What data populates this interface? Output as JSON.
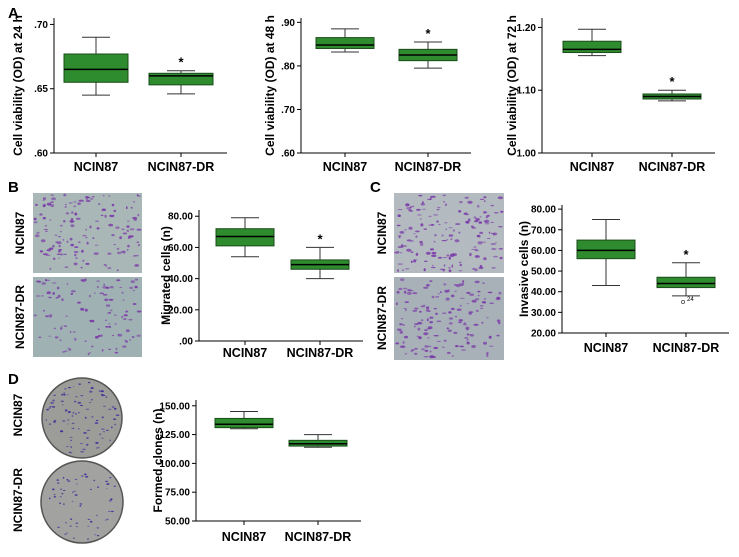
{
  "figure": {
    "panel_labels": [
      "A",
      "B",
      "C",
      "D"
    ],
    "photo_labels": {
      "B": [
        "NCIN87",
        "NCIN87-DR"
      ],
      "C": [
        "NCIN87",
        "NCIN87-DR"
      ],
      "D": [
        "NCIN87",
        "NCIN87-DR"
      ]
    },
    "colors": {
      "box_fill": "#2e8b2e",
      "box_stroke": "#1a4d1a",
      "axis": "#000000",
      "well_bg": "#a8b0b0",
      "cell_stain": "#7a3aa8",
      "dish_bg": "#9a9a98",
      "colony": "#3a2a9a"
    }
  },
  "chart_data": [
    {
      "id": "A1",
      "type": "box",
      "ylabel": "Cell viability (OD) at 24 h",
      "categories": [
        "NCIN87",
        "NCIN87-DR"
      ],
      "ticks": [
        0.6,
        0.65,
        0.7
      ],
      "tick_labels": [
        ".60",
        ".65",
        ".70"
      ],
      "ylim": [
        0.6,
        0.705
      ],
      "boxes": [
        {
          "min": 0.645,
          "q1": 0.655,
          "median": 0.665,
          "q3": 0.677,
          "max": 0.69,
          "star": false
        },
        {
          "min": 0.646,
          "q1": 0.653,
          "median": 0.66,
          "q3": 0.662,
          "max": 0.664,
          "star": true
        }
      ],
      "outliers": []
    },
    {
      "id": "A2",
      "type": "box",
      "ylabel": "Cell viability (OD) at 48 h",
      "categories": [
        "NCIN87",
        "NCIN87-DR"
      ],
      "ticks": [
        0.6,
        0.7,
        0.8,
        0.9
      ],
      "tick_labels": [
        ".60",
        ".70",
        ".80",
        ".90"
      ],
      "ylim": [
        0.6,
        0.91
      ],
      "boxes": [
        {
          "min": 0.832,
          "q1": 0.84,
          "median": 0.848,
          "q3": 0.865,
          "max": 0.885,
          "star": false
        },
        {
          "min": 0.795,
          "q1": 0.812,
          "median": 0.825,
          "q3": 0.838,
          "max": 0.855,
          "star": true
        }
      ],
      "outliers": []
    },
    {
      "id": "A3",
      "type": "box",
      "ylabel": "Cell viability (OD) at 72 h",
      "categories": [
        "NCIN87",
        "NCIN87-DR"
      ],
      "ticks": [
        1.0,
        1.1,
        1.2
      ],
      "tick_labels": [
        "1.00",
        "1.10",
        "1.20"
      ],
      "ylim": [
        1.0,
        1.215
      ],
      "boxes": [
        {
          "min": 1.155,
          "q1": 1.16,
          "median": 1.165,
          "q3": 1.178,
          "max": 1.197,
          "star": false
        },
        {
          "min": 1.083,
          "q1": 1.086,
          "median": 1.09,
          "q3": 1.094,
          "max": 1.1,
          "star": true
        }
      ],
      "outliers": []
    },
    {
      "id": "B",
      "type": "box",
      "ylabel": "Migrated cells (n)",
      "categories": [
        "NCIN87",
        "NCIN87-DR"
      ],
      "ticks": [
        0,
        20,
        40,
        60,
        80
      ],
      "tick_labels": [
        ".00",
        "20.00",
        "40.00",
        "60.00",
        "80.00"
      ],
      "ylim": [
        0,
        84
      ],
      "boxes": [
        {
          "min": 54,
          "q1": 61,
          "median": 67,
          "q3": 72,
          "max": 79,
          "star": false
        },
        {
          "min": 40,
          "q1": 46,
          "median": 49,
          "q3": 52,
          "max": 60,
          "star": true
        }
      ],
      "outliers": []
    },
    {
      "id": "C",
      "type": "box",
      "ylabel": "Invasive cells (n)",
      "categories": [
        "NCIN87",
        "NCIN87-DR"
      ],
      "ticks": [
        20,
        30,
        40,
        50,
        60,
        70,
        80
      ],
      "tick_labels": [
        "20.00",
        "30.00",
        "40.00",
        "50.00",
        "60.00",
        "70.00",
        "80.00"
      ],
      "ylim": [
        20,
        82
      ],
      "boxes": [
        {
          "min": 43,
          "q1": 56,
          "median": 60,
          "q3": 65,
          "max": 75,
          "star": false
        },
        {
          "min": 38,
          "q1": 42,
          "median": 44,
          "q3": 47,
          "max": 54,
          "star": true
        }
      ],
      "outliers": [
        {
          "category": 1,
          "value": 35,
          "label": "24"
        }
      ]
    },
    {
      "id": "D",
      "type": "box",
      "ylabel": "Formed clones (n)",
      "categories": [
        "NCIN87",
        "NCIN87-DR"
      ],
      "ticks": [
        50,
        75,
        100,
        125,
        150
      ],
      "tick_labels": [
        "50.00",
        "75.00",
        "100.00",
        "125.00",
        "150.00"
      ],
      "ylim": [
        50,
        155
      ],
      "boxes": [
        {
          "min": 130,
          "q1": 131,
          "median": 134,
          "q3": 139,
          "max": 145,
          "star": false
        },
        {
          "min": 114,
          "q1": 115,
          "median": 117,
          "q3": 120,
          "max": 125,
          "star": false
        }
      ],
      "outliers": []
    }
  ]
}
